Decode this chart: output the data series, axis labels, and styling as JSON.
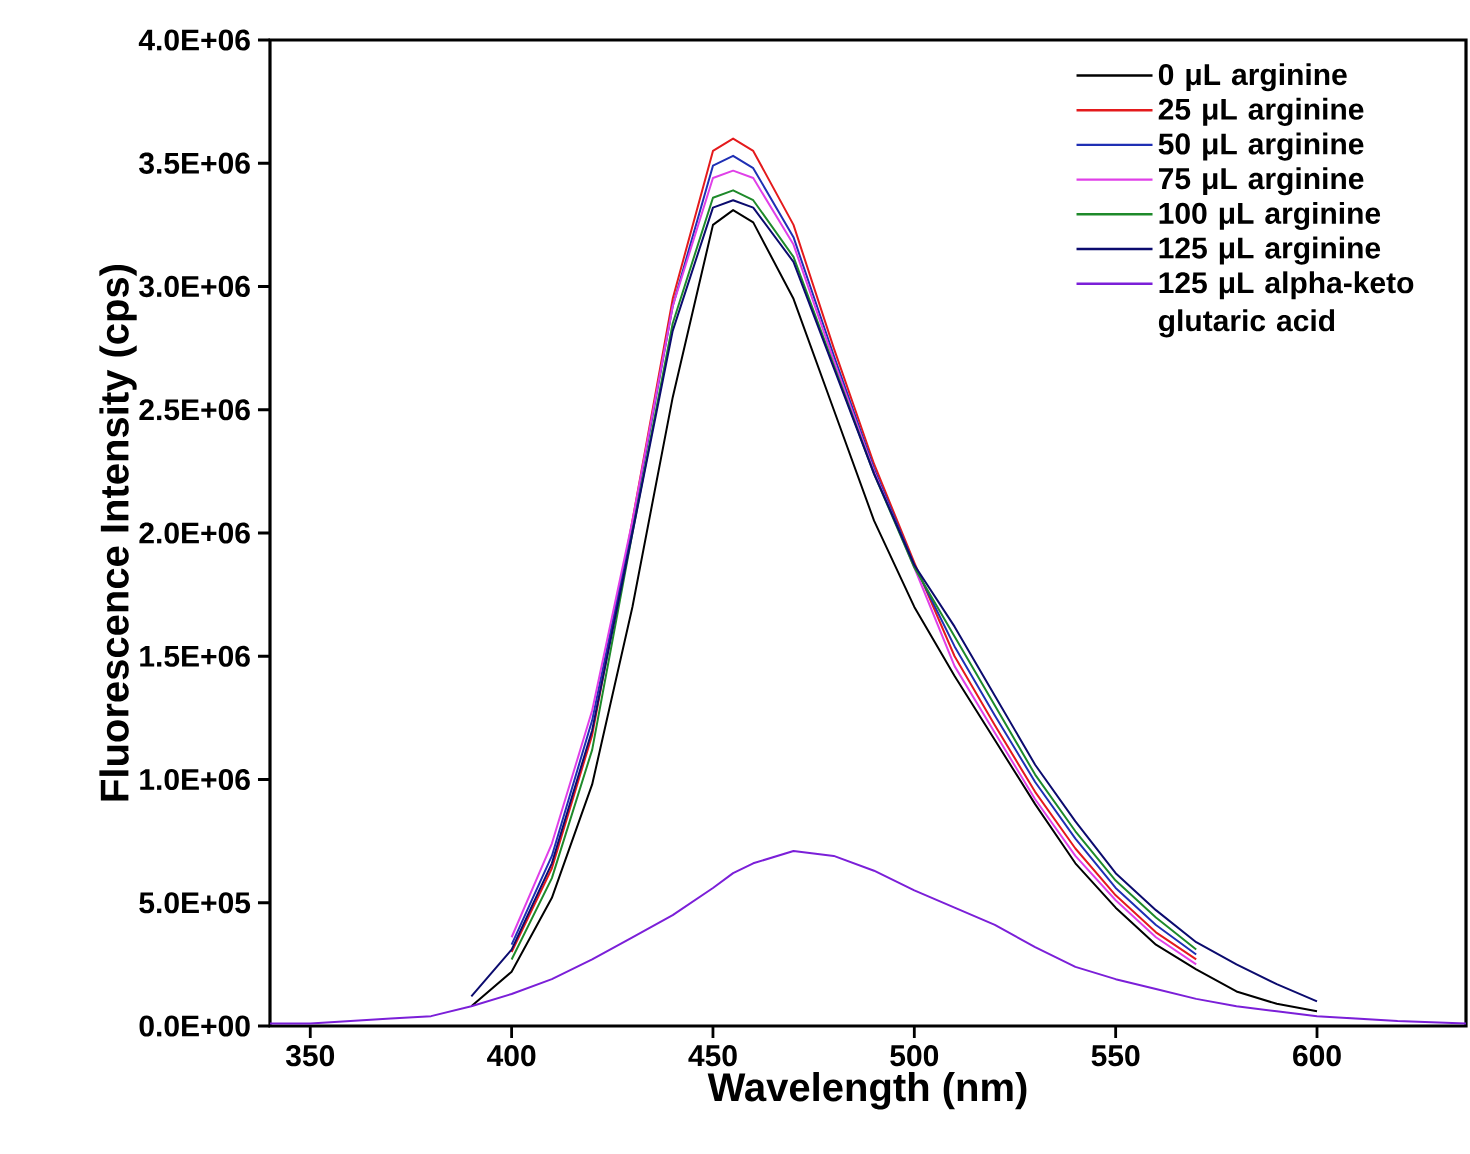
{
  "chart_data": {
    "type": "line",
    "xlabel": "Wavelength (nm)",
    "ylabel": "Fluorescence Intensity (cps)",
    "xlim": [
      340,
      637
    ],
    "ylim": [
      0,
      4000000
    ],
    "xticks": [
      350,
      400,
      450,
      500,
      550,
      600
    ],
    "yticks": [
      {
        "value": 0,
        "label": "0.0E+00"
      },
      {
        "value": 500000,
        "label": "5.0E+05"
      },
      {
        "value": 1000000,
        "label": "1.0E+06"
      },
      {
        "value": 1500000,
        "label": "1.5E+06"
      },
      {
        "value": 2000000,
        "label": "2.0E+06"
      },
      {
        "value": 2500000,
        "label": "2.5E+06"
      },
      {
        "value": 3000000,
        "label": "3.0E+06"
      },
      {
        "value": 3500000,
        "label": "3.5E+06"
      },
      {
        "value": 4000000,
        "label": "4.0E+06"
      }
    ],
    "legend": "top right",
    "x": [
      340,
      350,
      360,
      370,
      380,
      390,
      400,
      410,
      420,
      430,
      440,
      450,
      455,
      460,
      470,
      480,
      490,
      500,
      510,
      520,
      530,
      540,
      550,
      560,
      570,
      580,
      590,
      600,
      620,
      637
    ],
    "series": [
      {
        "name": "0 μL arginine",
        "color": "#000000",
        "x": [
          390,
          400,
          410,
          420,
          430,
          440,
          450,
          455,
          460,
          470,
          480,
          490,
          500,
          510,
          520,
          530,
          540,
          550,
          560,
          570,
          580,
          590,
          600
        ],
        "values": [
          80000,
          220000,
          520000,
          980000,
          1700000,
          2550000,
          3250000,
          3310000,
          3260000,
          2950000,
          2500000,
          2050000,
          1700000,
          1420000,
          1160000,
          900000,
          660000,
          480000,
          330000,
          230000,
          140000,
          90000,
          60000
        ]
      },
      {
        "name": "25 μL arginine",
        "color": "#e41a1c",
        "x": [
          400,
          410,
          420,
          430,
          440,
          450,
          455,
          460,
          470,
          480,
          490,
          500,
          510,
          520,
          530,
          540,
          550,
          560,
          570
        ],
        "values": [
          300000,
          640000,
          1180000,
          2050000,
          2950000,
          3550000,
          3600000,
          3550000,
          3250000,
          2750000,
          2280000,
          1880000,
          1500000,
          1220000,
          950000,
          720000,
          530000,
          380000,
          270000
        ]
      },
      {
        "name": "50 μL arginine",
        "color": "#1f2fb4",
        "x": [
          400,
          410,
          420,
          430,
          440,
          450,
          455,
          460,
          470,
          480,
          490,
          500,
          510,
          520,
          530,
          540,
          550,
          560,
          570
        ],
        "values": [
          330000,
          690000,
          1240000,
          2030000,
          2920000,
          3490000,
          3530000,
          3480000,
          3200000,
          2720000,
          2260000,
          1870000,
          1540000,
          1260000,
          990000,
          760000,
          560000,
          410000,
          290000
        ]
      },
      {
        "name": "75 μL arginine",
        "color": "#e040e8",
        "x": [
          400,
          410,
          420,
          430,
          440,
          450,
          455,
          460,
          470,
          480,
          490,
          500,
          510,
          520,
          530,
          540,
          550,
          560,
          570
        ],
        "values": [
          360000,
          740000,
          1280000,
          2050000,
          2920000,
          3440000,
          3470000,
          3440000,
          3170000,
          2700000,
          2250000,
          1860000,
          1460000,
          1190000,
          920000,
          690000,
          510000,
          360000,
          250000
        ]
      },
      {
        "name": "100 μL arginine",
        "color": "#1e8a2a",
        "x": [
          400,
          410,
          420,
          430,
          440,
          450,
          455,
          460,
          470,
          480,
          490,
          500,
          510,
          520,
          530,
          540,
          550,
          560,
          570
        ],
        "values": [
          270000,
          600000,
          1120000,
          2000000,
          2850000,
          3360000,
          3390000,
          3350000,
          3120000,
          2680000,
          2240000,
          1860000,
          1580000,
          1300000,
          1020000,
          790000,
          590000,
          440000,
          310000
        ]
      },
      {
        "name": "125 μL arginine",
        "color": "#0b0b6e",
        "x": [
          390,
          400,
          410,
          420,
          430,
          440,
          450,
          455,
          460,
          470,
          480,
          490,
          500,
          510,
          520,
          530,
          540,
          550,
          560,
          570,
          580,
          590,
          600
        ],
        "values": [
          120000,
          310000,
          660000,
          1200000,
          2000000,
          2820000,
          3320000,
          3350000,
          3320000,
          3100000,
          2670000,
          2240000,
          1870000,
          1620000,
          1340000,
          1060000,
          830000,
          620000,
          470000,
          340000,
          250000,
          170000,
          100000
        ]
      },
      {
        "name": "125 μL alpha-keto glutaric acid",
        "color": "#7b1fd8",
        "values": [
          10000,
          10000,
          20000,
          30000,
          40000,
          80000,
          130000,
          190000,
          270000,
          360000,
          450000,
          560000,
          620000,
          660000,
          710000,
          690000,
          630000,
          550000,
          480000,
          410000,
          320000,
          240000,
          190000,
          150000,
          110000,
          80000,
          60000,
          40000,
          20000,
          10000
        ]
      }
    ]
  }
}
